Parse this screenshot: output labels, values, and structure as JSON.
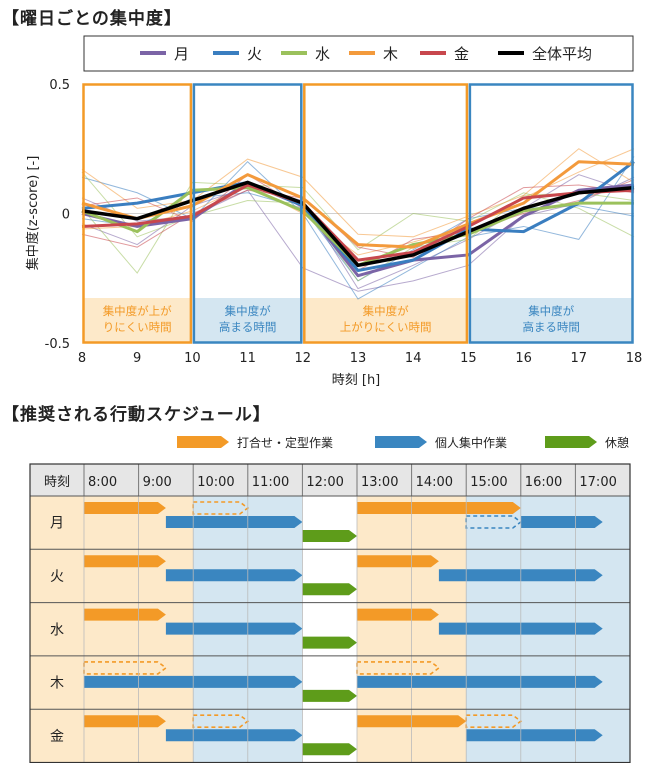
{
  "section1_title": "【曜日ごとの集中度】",
  "section2_title": "【推奨される行動スケジュール】",
  "colors": {
    "orange": "#F39A27",
    "blue": "#3A86C0",
    "green": "#5E9C1A",
    "orange_bg": "#FDE9C9",
    "blue_bg": "#D4E6F1"
  },
  "chart_data": {
    "type": "line",
    "xlabel": "時刻 [h]",
    "ylabel": "集中度(z-score) [-]",
    "xlim": [
      8,
      18
    ],
    "ylim": [
      -0.5,
      0.5
    ],
    "x_ticks": [
      "8",
      "9",
      "10",
      "11",
      "12",
      "13",
      "14",
      "15",
      "16",
      "17",
      "18"
    ],
    "y_ticks": [
      {
        "value": 0.5,
        "label": "0.5"
      },
      {
        "value": 0,
        "label": "0"
      },
      {
        "value": -0.5,
        "label": "-0.5"
      }
    ],
    "x": [
      8,
      9,
      10,
      11,
      12,
      13,
      14,
      15,
      16,
      17,
      18
    ],
    "legend_position": "top",
    "series": [
      {
        "name": "月",
        "color": "#7B64A6",
        "width": 3,
        "values": [
          0.0,
          -0.05,
          -0.02,
          0.12,
          0.03,
          -0.24,
          -0.18,
          -0.16,
          -0.01,
          0.09,
          0.11
        ]
      },
      {
        "name": "火",
        "color": "#3A7EC0",
        "width": 3,
        "values": [
          0.02,
          0.04,
          0.08,
          0.12,
          0.03,
          -0.22,
          -0.18,
          -0.06,
          -0.07,
          0.04,
          0.2
        ]
      },
      {
        "name": "水",
        "color": "#9BC15C",
        "width": 3,
        "values": [
          0.01,
          -0.07,
          0.09,
          0.1,
          0.01,
          -0.2,
          -0.12,
          -0.08,
          0.01,
          0.04,
          0.04
        ]
      },
      {
        "name": "木",
        "color": "#F39A3C",
        "width": 3,
        "values": [
          0.04,
          -0.02,
          0.03,
          0.15,
          0.06,
          -0.12,
          -0.13,
          -0.04,
          0.04,
          0.2,
          0.19
        ]
      },
      {
        "name": "金",
        "color": "#C8474D",
        "width": 3,
        "values": [
          -0.05,
          -0.04,
          -0.01,
          0.11,
          0.04,
          -0.18,
          -0.15,
          -0.05,
          0.06,
          0.08,
          0.09
        ]
      },
      {
        "name": "全体平均",
        "color": "#000000",
        "width": 3.5,
        "values": [
          0.01,
          -0.02,
          0.05,
          0.12,
          0.04,
          -0.2,
          -0.16,
          -0.07,
          0.02,
          0.08,
          0.1
        ]
      }
    ],
    "thin_lines": [
      {
        "color": "#7B64A6",
        "values": [
          0.06,
          -0.03,
          -0.01,
          0.09,
          -0.21,
          -0.3,
          -0.26,
          -0.2,
          -0.01,
          0.04,
          0.14
        ]
      },
      {
        "color": "#7B64A6",
        "values": [
          -0.04,
          -0.12,
          0.03,
          0.1,
          0.05,
          -0.29,
          -0.2,
          -0.1,
          0.02,
          0.15,
          0.08
        ]
      },
      {
        "color": "#3A7EC0",
        "values": [
          0.14,
          0.08,
          -0.02,
          0.2,
          0.0,
          -0.33,
          -0.21,
          -0.09,
          -0.05,
          -0.1,
          0.22
        ]
      },
      {
        "color": "#3A7EC0",
        "values": [
          -0.02,
          -0.05,
          0.06,
          0.08,
          0.02,
          -0.26,
          -0.14,
          -0.02,
          0.02,
          0.03,
          -0.01
        ]
      },
      {
        "color": "#9BC15C",
        "values": [
          0.02,
          -0.23,
          0.12,
          0.11,
          0.1,
          -0.14,
          0.0,
          -0.03,
          0.08,
          0.02,
          -0.09
        ]
      },
      {
        "color": "#9BC15C",
        "values": [
          0.16,
          -0.09,
          -0.01,
          0.05,
          0.04,
          -0.26,
          -0.13,
          -0.1,
          0.07,
          0.08,
          0.05
        ]
      },
      {
        "color": "#F39A3C",
        "values": [
          0.17,
          0.02,
          0.05,
          0.21,
          0.14,
          -0.08,
          -0.09,
          -0.01,
          0.07,
          0.25,
          0.12
        ]
      },
      {
        "color": "#F39A3C",
        "values": [
          -0.06,
          -0.05,
          0.01,
          0.11,
          0.0,
          -0.16,
          -0.11,
          -0.05,
          0.06,
          0.16,
          0.25
        ]
      },
      {
        "color": "#C8474D",
        "values": [
          -0.08,
          -0.13,
          0.0,
          0.09,
          0.06,
          -0.13,
          -0.17,
          -0.02,
          0.1,
          0.11,
          0.08
        ]
      },
      {
        "color": "#C8474D",
        "values": [
          0.03,
          0.06,
          -0.03,
          0.15,
          0.02,
          -0.22,
          -0.1,
          -0.07,
          0.0,
          0.05,
          0.13
        ]
      }
    ],
    "regions": [
      {
        "x0": 8,
        "x1": 10,
        "type": "orange",
        "label_lines": [
          "集中度が上が",
          "りにくい時間"
        ]
      },
      {
        "x0": 10,
        "x1": 12,
        "type": "blue",
        "label_lines": [
          "集中度が",
          "高まる時間"
        ]
      },
      {
        "x0": 12,
        "x1": 15,
        "type": "orange",
        "label_lines": [
          "集中度が",
          "上がりにくい時間"
        ]
      },
      {
        "x0": 15,
        "x1": 18,
        "type": "blue",
        "label_lines": [
          "集中度が",
          "高まる時間"
        ]
      }
    ]
  },
  "schedule": {
    "legend": [
      {
        "label": "打合せ・定型作業",
        "type": "orange"
      },
      {
        "label": "個人集中作業",
        "type": "blue"
      },
      {
        "label": "休憩",
        "type": "green"
      }
    ],
    "header": [
      "時刻",
      "8:00",
      "9:00",
      "10:00",
      "11:00",
      "12:00",
      "13:00",
      "14:00",
      "15:00",
      "16:00",
      "17:00"
    ],
    "column_bg": [
      "orange",
      "orange",
      "blue",
      "blue",
      "white",
      "orange",
      "orange",
      "blue",
      "blue",
      "blue"
    ],
    "rows": [
      {
        "day": "月",
        "bars": [
          {
            "type": "orange",
            "start": 8,
            "end": 9.5,
            "lane": 0,
            "dashed": false
          },
          {
            "type": "orange",
            "start": 10,
            "end": 11,
            "lane": 0,
            "dashed": true
          },
          {
            "type": "blue",
            "start": 9.5,
            "end": 12,
            "lane": 1,
            "dashed": false
          },
          {
            "type": "green",
            "start": 12,
            "end": 13,
            "lane": 2,
            "dashed": false
          },
          {
            "type": "orange",
            "start": 13,
            "end": 16,
            "lane": 0,
            "dashed": false
          },
          {
            "type": "blue",
            "start": 15,
            "end": 16,
            "lane": 1,
            "dashed": true
          },
          {
            "type": "blue",
            "start": 16,
            "end": 17.5,
            "lane": 1,
            "dashed": false
          }
        ]
      },
      {
        "day": "火",
        "bars": [
          {
            "type": "orange",
            "start": 8,
            "end": 9.5,
            "lane": 0,
            "dashed": false
          },
          {
            "type": "blue",
            "start": 9.5,
            "end": 12,
            "lane": 1,
            "dashed": false
          },
          {
            "type": "green",
            "start": 12,
            "end": 13,
            "lane": 2,
            "dashed": false
          },
          {
            "type": "orange",
            "start": 13,
            "end": 14.5,
            "lane": 0,
            "dashed": false
          },
          {
            "type": "blue",
            "start": 14.5,
            "end": 17.5,
            "lane": 1,
            "dashed": false
          }
        ]
      },
      {
        "day": "水",
        "bars": [
          {
            "type": "orange",
            "start": 8,
            "end": 9.5,
            "lane": 0,
            "dashed": false
          },
          {
            "type": "blue",
            "start": 9.5,
            "end": 12,
            "lane": 1,
            "dashed": false
          },
          {
            "type": "green",
            "start": 12,
            "end": 13,
            "lane": 2,
            "dashed": false
          },
          {
            "type": "orange",
            "start": 13,
            "end": 14.5,
            "lane": 0,
            "dashed": false
          },
          {
            "type": "blue",
            "start": 14.5,
            "end": 17.5,
            "lane": 1,
            "dashed": false
          }
        ]
      },
      {
        "day": "木",
        "bars": [
          {
            "type": "orange",
            "start": 8,
            "end": 9.5,
            "lane": 0,
            "dashed": true
          },
          {
            "type": "blue",
            "start": 8,
            "end": 12,
            "lane": 1,
            "dashed": false
          },
          {
            "type": "green",
            "start": 12,
            "end": 13,
            "lane": 2,
            "dashed": false
          },
          {
            "type": "orange",
            "start": 13,
            "end": 14.5,
            "lane": 0,
            "dashed": true
          },
          {
            "type": "blue",
            "start": 13,
            "end": 17.5,
            "lane": 1,
            "dashed": false
          }
        ]
      },
      {
        "day": "金",
        "bars": [
          {
            "type": "orange",
            "start": 8,
            "end": 9.5,
            "lane": 0,
            "dashed": false
          },
          {
            "type": "orange",
            "start": 10,
            "end": 11,
            "lane": 0,
            "dashed": true
          },
          {
            "type": "blue",
            "start": 9.5,
            "end": 12,
            "lane": 1,
            "dashed": false
          },
          {
            "type": "green",
            "start": 12,
            "end": 13,
            "lane": 2,
            "dashed": false
          },
          {
            "type": "orange",
            "start": 13,
            "end": 15,
            "lane": 0,
            "dashed": false
          },
          {
            "type": "orange",
            "start": 15,
            "end": 16,
            "lane": 0,
            "dashed": true
          },
          {
            "type": "blue",
            "start": 15,
            "end": 17.5,
            "lane": 1,
            "dashed": false
          }
        ]
      }
    ]
  }
}
